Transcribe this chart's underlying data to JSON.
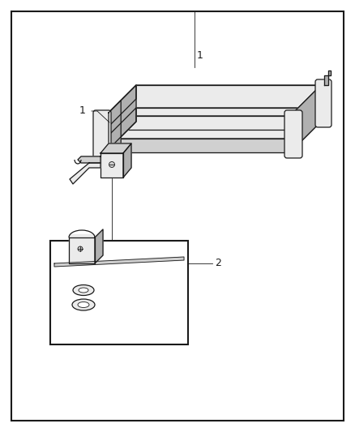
{
  "background_color": "#ffffff",
  "border_color": "#1a1a1a",
  "line_color": "#1a1a1a",
  "figure_width": 4.38,
  "figure_height": 5.33,
  "dpi": 100,
  "label1_text": "1",
  "label2_text": "2",
  "fill_white": "#ffffff",
  "fill_light": "#ebebeb",
  "fill_mid": "#d0d0d0",
  "fill_dark": "#b0b0b0",
  "fill_darker": "#909090"
}
